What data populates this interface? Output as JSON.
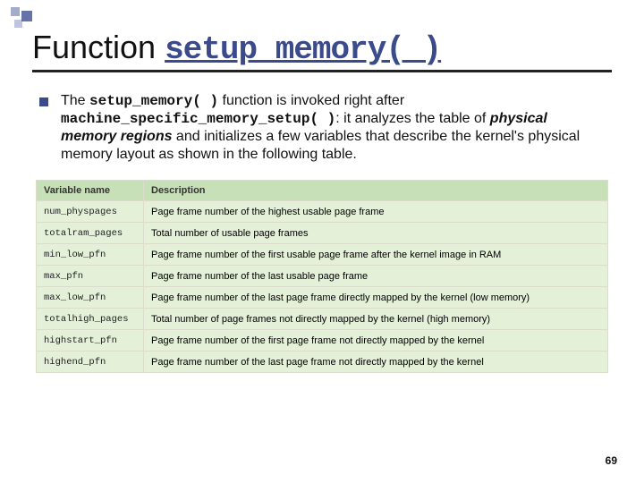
{
  "title": {
    "prefix": "Function",
    "code": "setup_memory( )"
  },
  "bullet": {
    "pre": "The ",
    "code1": "setup_memory( )",
    "mid1": " function is invoked right after ",
    "code2": "machine_specific_memory_setup( )",
    "mid2": ": it analyzes the table of ",
    "italic": "physical memory regions",
    "post": " and initializes a few variables that describe the kernel's physical memory layout as shown in the following table."
  },
  "table": {
    "header_bg": "#c8e0b8",
    "row_bg": "#e4f0d8",
    "border_color": "#dcdccc",
    "columns": [
      "Variable name",
      "Description"
    ],
    "rows": [
      [
        "num_physpages",
        "Page frame number of the highest usable page frame"
      ],
      [
        "totalram_pages",
        "Total number of usable page frames"
      ],
      [
        "min_low_pfn",
        "Page frame number of the first usable page frame after the kernel image in RAM"
      ],
      [
        "max_pfn",
        "Page frame number of the last usable page frame"
      ],
      [
        "max_low_pfn",
        "Page frame number of the last page frame directly mapped by the kernel (low memory)"
      ],
      [
        "totalhigh_pages",
        "Total number of page frames not directly mapped by the kernel (high memory)"
      ],
      [
        "highstart_pfn",
        "Page frame number of the first page frame not directly mapped by the kernel"
      ],
      [
        "highend_pfn",
        "Page frame number of the last page frame not directly mapped by the kernel"
      ]
    ]
  },
  "page_number": "69"
}
